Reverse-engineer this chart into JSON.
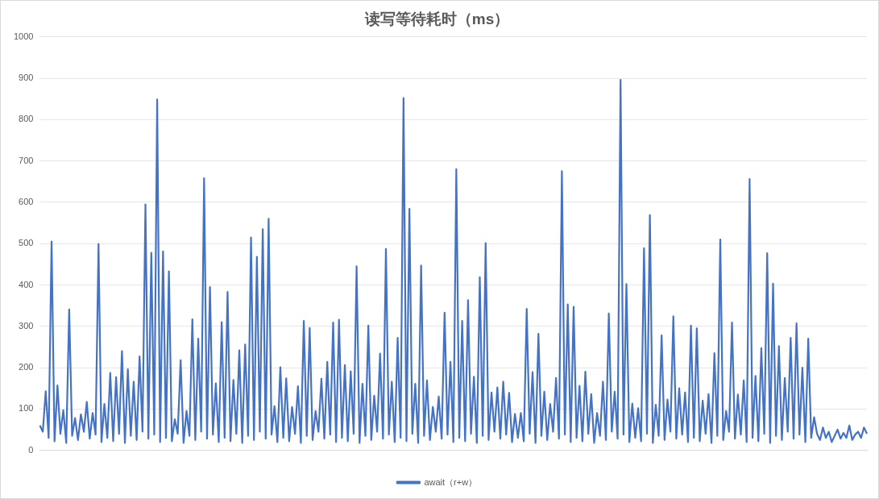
{
  "chart_data": {
    "type": "line",
    "title": "读写等待耗时（ms）",
    "categories": [
      null,
      null,
      null,
      null,
      null,
      null,
      null,
      null,
      null,
      null,
      null,
      null,
      null,
      null,
      null,
      null,
      null,
      null,
      null,
      null,
      null,
      null,
      null,
      null,
      null,
      null,
      null,
      null,
      null,
      null,
      null,
      null,
      null,
      null,
      null,
      null,
      null,
      null,
      null,
      null,
      null,
      null,
      null,
      null,
      null,
      null,
      null,
      null,
      null,
      null,
      null,
      null,
      null,
      null,
      null,
      null,
      null,
      null,
      null,
      null,
      null,
      null,
      null,
      null,
      null,
      null,
      null,
      null,
      null,
      null,
      null,
      null,
      null,
      null,
      null,
      null,
      null,
      null,
      null,
      null,
      null,
      null,
      null,
      null,
      null,
      null,
      null,
      null,
      null,
      null,
      null,
      null,
      null,
      null,
      null,
      null,
      null,
      null,
      null,
      null,
      null,
      null,
      null,
      null,
      null,
      null,
      null,
      null,
      null,
      null,
      null,
      null,
      null,
      null,
      null,
      null,
      null,
      null,
      null,
      null,
      null,
      null,
      null,
      null,
      null,
      null,
      null,
      null,
      null,
      null,
      null,
      null,
      null,
      null,
      null,
      null,
      null,
      null,
      null,
      null,
      null,
      null,
      null,
      null,
      null,
      null,
      null,
      null,
      null,
      null,
      null,
      null,
      null,
      null,
      null,
      null,
      null,
      null,
      null,
      null,
      null,
      null,
      null,
      null,
      null,
      null,
      null,
      null,
      null,
      null,
      null,
      null,
      null,
      null,
      null,
      null,
      null,
      null,
      null,
      null,
      null,
      null,
      null,
      null,
      null,
      null,
      null,
      null,
      null,
      null,
      null,
      null,
      null,
      null,
      null,
      null,
      null,
      null,
      null,
      null,
      null,
      null,
      null,
      null,
      null,
      null,
      null,
      null,
      null,
      null,
      null,
      null,
      null,
      null,
      null,
      null,
      null,
      null,
      null,
      null,
      null,
      null,
      null,
      null,
      null,
      null,
      null,
      null,
      null,
      null,
      null,
      null,
      null,
      null,
      null,
      null,
      null,
      null,
      null,
      null,
      null,
      null,
      null,
      null,
      null,
      null,
      null,
      null,
      null,
      null,
      null,
      null,
      null,
      null,
      null,
      null,
      null,
      null,
      null,
      null,
      null,
      null,
      null,
      null,
      null,
      null,
      null,
      null,
      null,
      null,
      null,
      null,
      null,
      null,
      null,
      null,
      null,
      null,
      null,
      null,
      null,
      null,
      null
    ],
    "series": [
      {
        "name": "await（r+w）",
        "color": "#4472c4",
        "values": [
          60,
          45,
          143,
          30,
          505,
          22,
          157,
          40,
          97,
          18,
          341,
          35,
          78,
          25,
          87,
          45,
          117,
          28,
          90,
          38,
          499,
          20,
          112,
          30,
          187,
          22,
          177,
          40,
          240,
          18,
          196,
          35,
          166,
          25,
          227,
          45,
          595,
          28,
          478,
          38,
          849,
          20,
          481,
          30,
          433,
          22,
          75,
          40,
          218,
          18,
          95,
          35,
          317,
          25,
          270,
          45,
          658,
          28,
          395,
          38,
          162,
          20,
          310,
          30,
          383,
          22,
          170,
          40,
          242,
          18,
          256,
          35,
          515,
          25,
          468,
          45,
          535,
          28,
          560,
          38,
          107,
          20,
          201,
          30,
          174,
          22,
          105,
          40,
          155,
          18,
          313,
          35,
          296,
          25,
          95,
          45,
          173,
          28,
          214,
          38,
          309,
          20,
          316,
          30,
          206,
          22,
          191,
          40,
          445,
          18,
          161,
          35,
          302,
          25,
          132,
          45,
          234,
          28,
          487,
          38,
          166,
          20,
          272,
          30,
          852,
          22,
          584,
          40,
          161,
          18,
          447,
          35,
          169,
          25,
          105,
          45,
          130,
          28,
          333,
          38,
          214,
          20,
          680,
          30,
          313,
          22,
          363,
          40,
          178,
          18,
          419,
          35,
          501,
          25,
          140,
          45,
          152,
          28,
          166,
          38,
          139,
          20,
          88,
          30,
          90,
          22,
          342,
          40,
          189,
          18,
          282,
          35,
          142,
          25,
          112,
          45,
          175,
          28,
          675,
          38,
          353,
          20,
          347,
          30,
          156,
          22,
          190,
          40,
          136,
          18,
          90,
          35,
          166,
          25,
          331,
          45,
          142,
          28,
          896,
          38,
          402,
          20,
          113,
          30,
          102,
          22,
          489,
          40,
          569,
          18,
          110,
          35,
          278,
          25,
          123,
          45,
          324,
          28,
          150,
          38,
          140,
          20,
          302,
          30,
          295,
          22,
          120,
          40,
          136,
          18,
          235,
          35,
          510,
          25,
          95,
          45,
          309,
          28,
          135,
          38,
          169,
          20,
          656,
          30,
          180,
          22,
          247,
          40,
          477,
          18,
          403,
          35,
          252,
          25,
          175,
          45,
          272,
          28,
          307,
          38,
          200,
          20,
          270,
          30,
          80,
          40,
          25,
          55,
          30,
          45,
          20,
          35,
          50,
          28,
          42,
          30,
          60,
          25,
          38,
          45,
          30,
          55,
          40
        ]
      }
    ],
    "ylim": [
      0,
      1000
    ],
    "yticks": [
      0,
      100,
      200,
      300,
      400,
      500,
      600,
      700,
      800,
      900,
      1000
    ],
    "grid": "y",
    "legend": "bottom",
    "marker": "none",
    "line_style": "solid"
  }
}
